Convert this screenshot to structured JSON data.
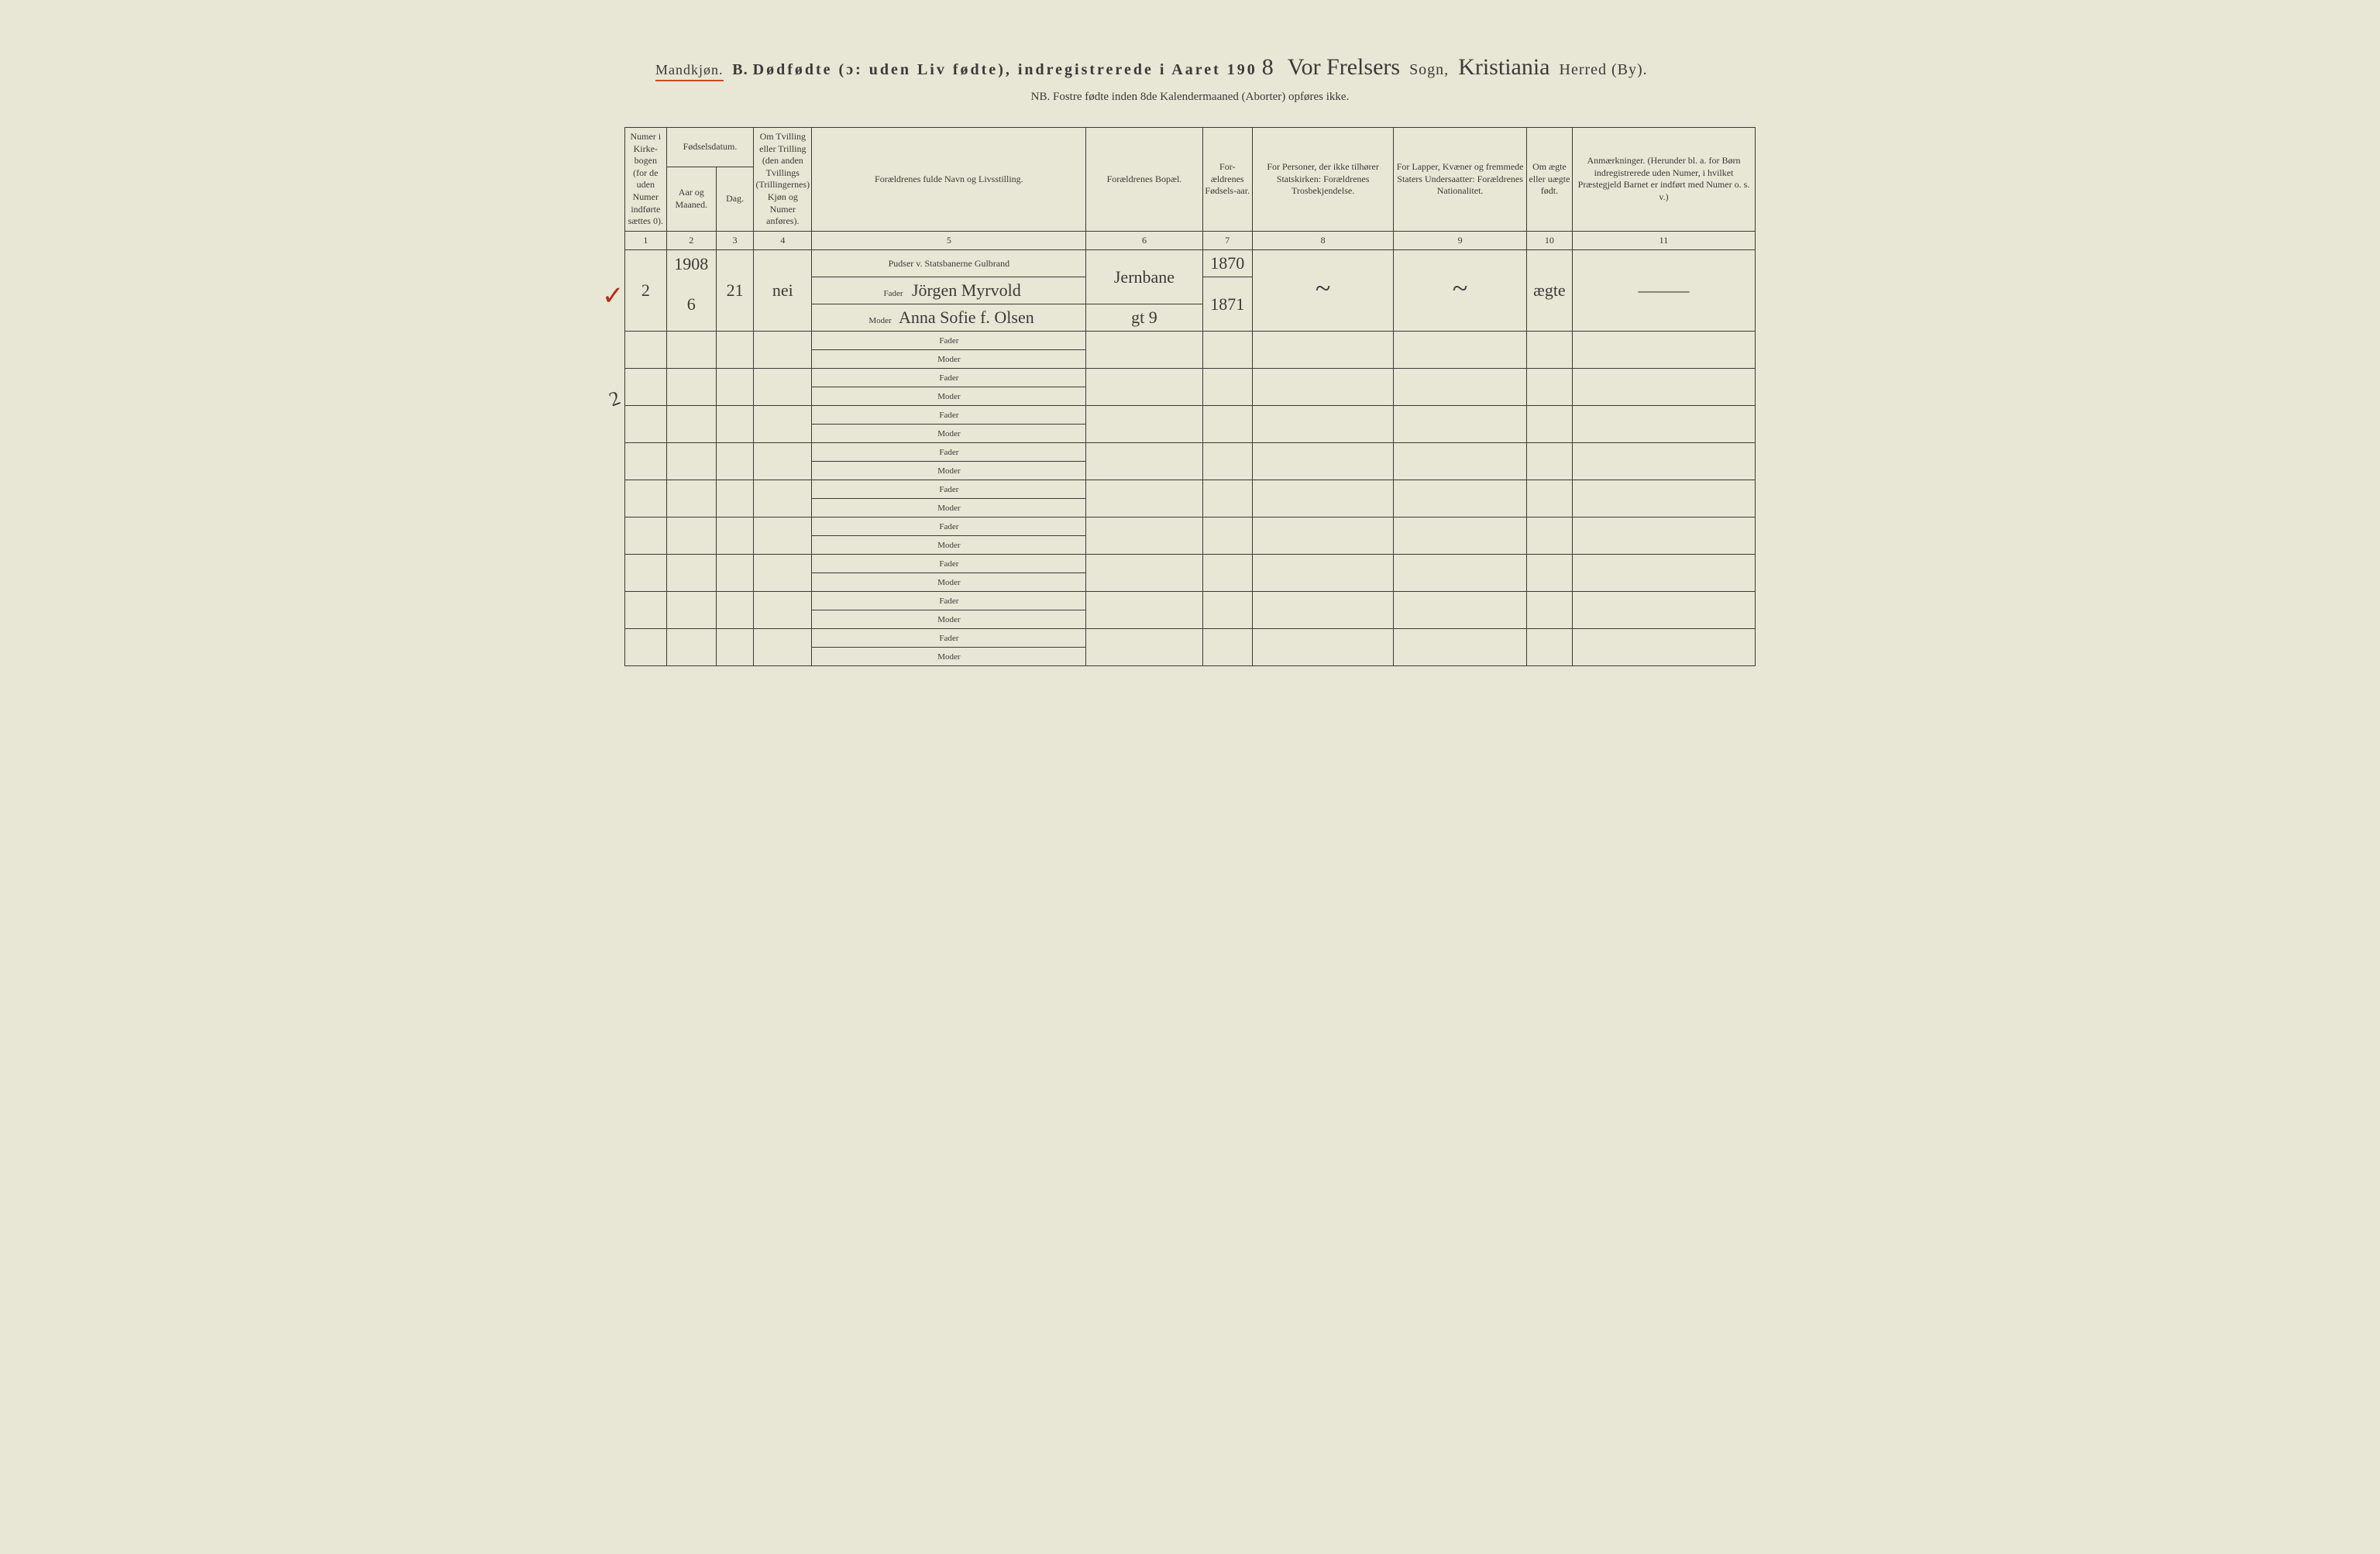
{
  "header": {
    "gender": "Mandkjøn.",
    "section_letter": "B.",
    "title_main": "Dødfødte (ɔ: uden Liv fødte), indregistrerede i Aaret 190",
    "year_suffix": "8",
    "sogn_label": "Sogn,",
    "sogn_value": "Vor Frelsers",
    "herred_label": "Herred (By).",
    "herred_value": "Kristiania",
    "nb": "NB.  Fostre fødte inden 8de Kalendermaaned (Aborter) opføres ikke."
  },
  "columns": {
    "c1": "Numer i Kirke-bogen (for de uden Numer indførte sættes 0).",
    "c2_3_group": "Fødselsdatum.",
    "c2": "Aar og Maaned.",
    "c3": "Dag.",
    "c4": "Om Tvilling eller Trilling (den anden Tvillings (Trillingernes) Kjøn og Numer anføres).",
    "c5": "Forældrenes fulde Navn og Livsstilling.",
    "c6": "Forældrenes Bopæl.",
    "c7": "For-ældrenes Fødsels-aar.",
    "c8": "For Personer, der ikke tilhører Statskirken: Forældrenes Trosbekjendelse.",
    "c9": "For Lapper, Kvæner og fremmede Staters Undersaatter: Forældrenes Nationalitet.",
    "c10": "Om ægte eller uægte født.",
    "c11": "Anmærkninger. (Herunder bl. a. for Børn indregistrerede uden Numer, i hvilket Præstegjeld Barnet er indført med Numer o. s. v.)",
    "numbers": [
      "1",
      "2",
      "3",
      "4",
      "5",
      "6",
      "7",
      "8",
      "9",
      "10",
      "11"
    ]
  },
  "row_labels": {
    "fader": "Fader",
    "moder": "Moder"
  },
  "entry": {
    "check": "✓",
    "numer": "2",
    "year": "1908",
    "month": "6",
    "day": "21",
    "twin": "nei",
    "occupation": "Pudser v. Statsbanerne Gulbrand",
    "fader": "Jörgen Myrvold",
    "moder": "Anna Sofie f. Olsen",
    "bopael_line1": "Jernbane",
    "bopael_line2": "gt 9",
    "fader_aar": "1870",
    "moder_aar": "1871",
    "tros": "~",
    "nat": "~",
    "aegte": "ægte",
    "anm": "———"
  },
  "margin_note": "2",
  "empty_row_count": 9,
  "colors": {
    "paper": "#e8e6d4",
    "ink": "#3a3a3a",
    "underline": "#c94a2a",
    "checkmark": "#b03018"
  }
}
